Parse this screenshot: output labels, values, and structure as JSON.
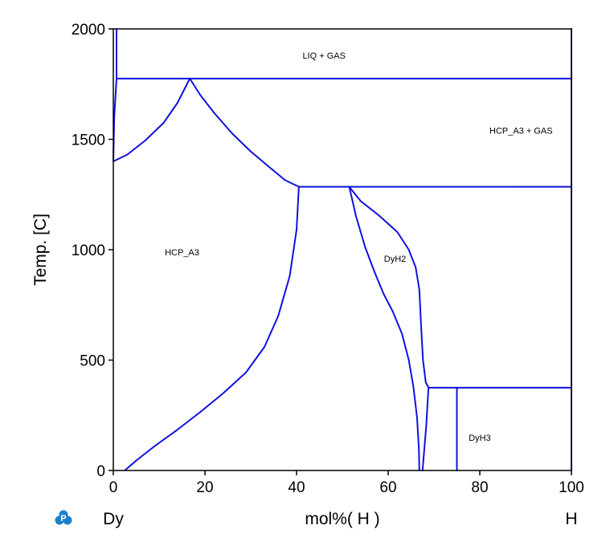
{
  "chart_data": {
    "type": "line",
    "title": "",
    "xlabel": "mol%( H )",
    "ylabel": "Temp. [C]",
    "xlim": [
      0,
      100
    ],
    "ylim": [
      0,
      2000
    ],
    "x_ticks": [
      "0",
      "20",
      "40",
      "60",
      "80",
      "100"
    ],
    "y_ticks": [
      "0",
      "500",
      "1000",
      "1500",
      "2000"
    ],
    "x_tick_values": [
      0,
      20,
      40,
      60,
      80,
      100
    ],
    "y_tick_values": [
      0,
      500,
      1000,
      1500,
      2000
    ],
    "left_component": "Dy",
    "right_component": "H",
    "grid": false,
    "line_color": "#1010e0",
    "logo_color": "#1e7fc8",
    "logo_letter": "P",
    "region_labels": [
      {
        "text": "LIQ + GAS",
        "x": 46,
        "y": 1880
      },
      {
        "text": "HCP_A3 + GAS",
        "x": 89,
        "y": 1540
      },
      {
        "text": "HCP_A3",
        "x": 15,
        "y": 990
      },
      {
        "text": "DyH2",
        "x": 61.5,
        "y": 960
      },
      {
        "text": "DyH3",
        "x": 80,
        "y": 150
      }
    ],
    "series": [
      {
        "points": [
          [
            0.7,
            2000
          ],
          [
            0.7,
            1775
          ]
        ]
      },
      {
        "points": [
          [
            0.7,
            1775
          ],
          [
            100,
            1775
          ]
        ]
      },
      {
        "points": [
          [
            0.7,
            1775
          ],
          [
            0.2,
            1600
          ],
          [
            0,
            1400
          ]
        ]
      },
      {
        "points": [
          [
            0,
            1400
          ],
          [
            0.5,
            1405
          ],
          [
            3,
            1430
          ],
          [
            7,
            1495
          ],
          [
            11,
            1575
          ],
          [
            14,
            1665
          ],
          [
            16.7,
            1775
          ]
        ]
      },
      {
        "points": [
          [
            16.7,
            1775
          ],
          [
            19,
            1700
          ],
          [
            22,
            1620
          ],
          [
            26,
            1525
          ],
          [
            30,
            1445
          ],
          [
            34,
            1375
          ],
          [
            37.5,
            1315
          ],
          [
            40.5,
            1285
          ]
        ]
      },
      {
        "points": [
          [
            40.5,
            1285
          ],
          [
            100,
            1285
          ]
        ]
      },
      {
        "points": [
          [
            2.5,
            0
          ],
          [
            5,
            45
          ],
          [
            9,
            110
          ],
          [
            14,
            185
          ],
          [
            19,
            265
          ],
          [
            24,
            350
          ],
          [
            29,
            445
          ],
          [
            33,
            560
          ],
          [
            36,
            700
          ],
          [
            38.5,
            880
          ],
          [
            40,
            1090
          ],
          [
            40.5,
            1285
          ]
        ]
      },
      {
        "points": [
          [
            51.5,
            1285
          ],
          [
            53,
            1150
          ],
          [
            55,
            1010
          ],
          [
            57,
            900
          ],
          [
            59,
            800
          ],
          [
            61,
            720
          ],
          [
            63,
            620
          ],
          [
            64.5,
            500
          ],
          [
            65.5,
            380
          ],
          [
            66.3,
            240
          ],
          [
            66.7,
            100
          ],
          [
            66.8,
            0
          ]
        ]
      },
      {
        "points": [
          [
            51.5,
            1285
          ],
          [
            54,
            1220
          ],
          [
            58,
            1155
          ],
          [
            62,
            1080
          ],
          [
            64.5,
            1000
          ],
          [
            66,
            920
          ],
          [
            66.8,
            820
          ],
          [
            67.2,
            650
          ],
          [
            67.6,
            500
          ],
          [
            68.2,
            400
          ],
          [
            68.8,
            375
          ]
        ]
      },
      {
        "points": [
          [
            67.5,
            0
          ],
          [
            68.3,
            200
          ],
          [
            68.8,
            375
          ]
        ]
      },
      {
        "points": [
          [
            68.8,
            375
          ],
          [
            100,
            375
          ]
        ]
      },
      {
        "points": [
          [
            75,
            375
          ],
          [
            75,
            0
          ]
        ]
      },
      {
        "points": [
          [
            100,
            2000
          ],
          [
            100,
            0
          ]
        ]
      }
    ]
  }
}
